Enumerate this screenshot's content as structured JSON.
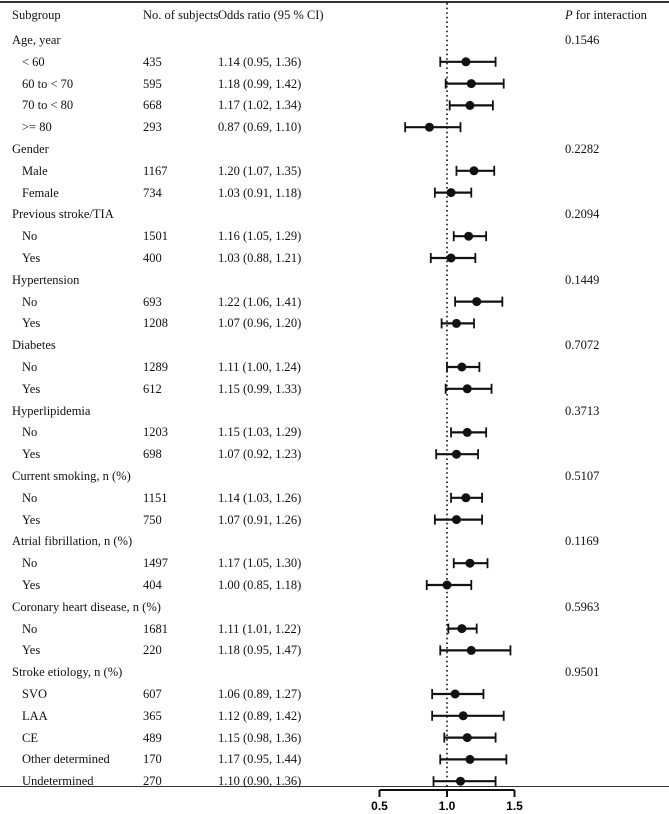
{
  "header": {
    "subgroup": "Subgroup",
    "n": "No. of subjects",
    "or": "Odds ratio (95 % CI)",
    "p_italic": "P",
    "p_rest": " for interaction"
  },
  "chart_data": {
    "type": "forest",
    "xaxis": {
      "ticks": [
        "0.5",
        "1.0",
        "1.5"
      ],
      "tick_values": [
        0.5,
        1.0,
        1.5
      ],
      "range": [
        0.5,
        1.5
      ],
      "reference": 1.0
    },
    "groups": [
      {
        "label": "Age, year",
        "p": "0.1546",
        "rows": [
          {
            "label": "< 60",
            "n": "435",
            "text": "1.14 (0.95, 1.36)",
            "or": 1.14,
            "lo": 0.95,
            "hi": 1.36
          },
          {
            "label": "60 to < 70",
            "n": "595",
            "text": "1.18 (0.99, 1.42)",
            "or": 1.18,
            "lo": 0.99,
            "hi": 1.42
          },
          {
            "label": "70 to < 80",
            "n": "668",
            "text": "1.17 (1.02, 1.34)",
            "or": 1.17,
            "lo": 1.02,
            "hi": 1.34
          },
          {
            "label": ">= 80",
            "n": "293",
            "text": "0.87 (0.69, 1.10)",
            "or": 0.87,
            "lo": 0.69,
            "hi": 1.1
          }
        ]
      },
      {
        "label": "Gender",
        "p": "0.2282",
        "rows": [
          {
            "label": "Male",
            "n": "1167",
            "text": "1.20 (1.07, 1.35)",
            "or": 1.2,
            "lo": 1.07,
            "hi": 1.35
          },
          {
            "label": "Female",
            "n": "734",
            "text": "1.03 (0.91, 1.18)",
            "or": 1.03,
            "lo": 0.91,
            "hi": 1.18
          }
        ]
      },
      {
        "label": "Previous stroke/TIA",
        "p": "0.2094",
        "rows": [
          {
            "label": "No",
            "n": "1501",
            "text": "1.16 (1.05, 1.29)",
            "or": 1.16,
            "lo": 1.05,
            "hi": 1.29
          },
          {
            "label": "Yes",
            "n": "400",
            "text": "1.03 (0.88, 1.21)",
            "or": 1.03,
            "lo": 0.88,
            "hi": 1.21
          }
        ]
      },
      {
        "label": "Hypertension",
        "p": "0.1449",
        "rows": [
          {
            "label": "No",
            "n": "693",
            "text": "1.22 (1.06, 1.41)",
            "or": 1.22,
            "lo": 1.06,
            "hi": 1.41
          },
          {
            "label": "Yes",
            "n": "1208",
            "text": "1.07 (0.96, 1.20)",
            "or": 1.07,
            "lo": 0.96,
            "hi": 1.2
          }
        ]
      },
      {
        "label": "Diabetes",
        "p": "0.7072",
        "rows": [
          {
            "label": "No",
            "n": "1289",
            "text": "1.11 (1.00, 1.24)",
            "or": 1.11,
            "lo": 1.0,
            "hi": 1.24
          },
          {
            "label": "Yes",
            "n": "612",
            "text": "1.15 (0.99, 1.33)",
            "or": 1.15,
            "lo": 0.99,
            "hi": 1.33
          }
        ]
      },
      {
        "label": "Hyperlipidemia",
        "p": "0.3713",
        "rows": [
          {
            "label": "No",
            "n": "1203",
            "text": "1.15 (1.03, 1.29)",
            "or": 1.15,
            "lo": 1.03,
            "hi": 1.29
          },
          {
            "label": "Yes",
            "n": "698",
            "text": "1.07 (0.92, 1.23)",
            "or": 1.07,
            "lo": 0.92,
            "hi": 1.23
          }
        ]
      },
      {
        "label": "Current smoking, n (%)",
        "p": "0.5107",
        "rows": [
          {
            "label": "No",
            "n": "1151",
            "text": "1.14 (1.03, 1.26)",
            "or": 1.14,
            "lo": 1.03,
            "hi": 1.26
          },
          {
            "label": "Yes",
            "n": "750",
            "text": "1.07 (0.91, 1.26)",
            "or": 1.07,
            "lo": 0.91,
            "hi": 1.26
          }
        ]
      },
      {
        "label": "Atrial fibrillation, n (%)",
        "p": "0.1169",
        "rows": [
          {
            "label": "No",
            "n": "1497",
            "text": "1.17 (1.05, 1.30)",
            "or": 1.17,
            "lo": 1.05,
            "hi": 1.3
          },
          {
            "label": "Yes",
            "n": "404",
            "text": "1.00 (0.85, 1.18)",
            "or": 1.0,
            "lo": 0.85,
            "hi": 1.18
          }
        ]
      },
      {
        "label": "Coronary heart disease, n (%)",
        "p": "0.5963",
        "rows": [
          {
            "label": "No",
            "n": "1681",
            "text": "1.11 (1.01, 1.22)",
            "or": 1.11,
            "lo": 1.01,
            "hi": 1.22
          },
          {
            "label": "Yes",
            "n": "220",
            "text": "1.18 (0.95, 1.47)",
            "or": 1.18,
            "lo": 0.95,
            "hi": 1.47
          }
        ]
      },
      {
        "label": "Stroke etiology, n (%)",
        "p": "0.9501",
        "rows": [
          {
            "label": "SVO",
            "n": "607",
            "text": "1.06 (0.89, 1.27)",
            "or": 1.06,
            "lo": 0.89,
            "hi": 1.27
          },
          {
            "label": "LAA",
            "n": "365",
            "text": "1.12 (0.89, 1.42)",
            "or": 1.12,
            "lo": 0.89,
            "hi": 1.42
          },
          {
            "label": "CE",
            "n": "489",
            "text": "1.15 (0.98, 1.36)",
            "or": 1.15,
            "lo": 0.98,
            "hi": 1.36
          },
          {
            "label": "Other determined",
            "n": "170",
            "text": "1.17 (0.95, 1.44)",
            "or": 1.17,
            "lo": 0.95,
            "hi": 1.44
          },
          {
            "label": "Undetermined",
            "n": "270",
            "text": "1.10 (0.90, 1.36)",
            "or": 1.1,
            "lo": 0.9,
            "hi": 1.36
          }
        ]
      }
    ]
  }
}
